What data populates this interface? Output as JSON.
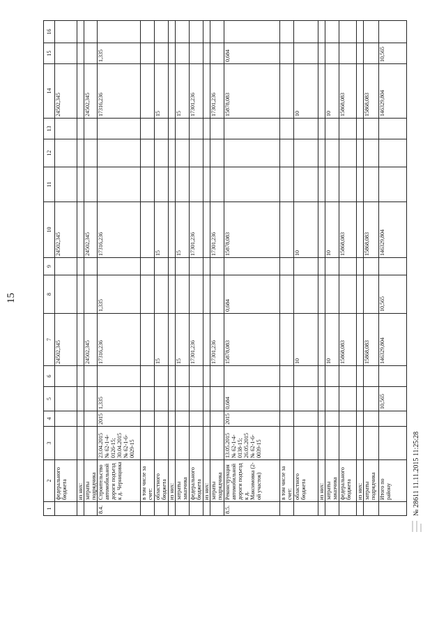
{
  "page_number": "15",
  "table": {
    "header": [
      "1",
      "2",
      "3",
      "4",
      "5",
      "6",
      "7",
      "8",
      "9",
      "10",
      "11",
      "12",
      "13",
      "14",
      "15",
      "16"
    ],
    "rows": [
      [
        null,
        "федерального бюджета",
        null,
        null,
        null,
        null,
        "24502,345",
        null,
        null,
        "24502,345",
        null,
        null,
        null,
        "24502,345",
        null,
        null
      ],
      [
        null,
        "из них:",
        null,
        null,
        null,
        null,
        null,
        null,
        null,
        null,
        null,
        null,
        null,
        null,
        null,
        null
      ],
      [
        null,
        "затраты подрядчика",
        null,
        null,
        null,
        null,
        "24502,345",
        null,
        null,
        "24502,345",
        null,
        null,
        null,
        "24502,345",
        null,
        null
      ],
      [
        "8.4.",
        "Строительство автомобильной дороги подъезд к д. Черницовка",
        "23.04.2015 № 62-1-4-0126-15; 30.04.2015 № 62-1-6-0029-15",
        "2015",
        "1,335",
        null,
        "17316,236",
        "1,335",
        null,
        "17316,236",
        null,
        null,
        null,
        "17316,236",
        "1,335",
        null
      ],
      [
        null,
        "в том числе за счет:",
        null,
        null,
        null,
        null,
        null,
        null,
        null,
        null,
        null,
        null,
        null,
        null,
        null,
        null
      ],
      [
        null,
        "областного бюджета",
        null,
        null,
        null,
        null,
        "15",
        null,
        null,
        "15",
        null,
        null,
        null,
        "15",
        null,
        null
      ],
      [
        null,
        "из них:",
        null,
        null,
        null,
        null,
        null,
        null,
        null,
        null,
        null,
        null,
        null,
        null,
        null,
        null
      ],
      [
        null,
        "затраты заказчика",
        null,
        null,
        null,
        null,
        "15",
        null,
        null,
        "15",
        null,
        null,
        null,
        "15",
        null,
        null
      ],
      [
        null,
        "федерального бюджета",
        null,
        null,
        null,
        null,
        "17301,236",
        null,
        null,
        "17301,236",
        null,
        null,
        null,
        "17301,236",
        null,
        null
      ],
      [
        null,
        "из них:",
        null,
        null,
        null,
        null,
        null,
        null,
        null,
        null,
        null,
        null,
        null,
        null,
        null,
        null
      ],
      [
        null,
        "затраты подрядчика",
        null,
        null,
        null,
        null,
        "17301,236",
        null,
        null,
        "17301,236",
        null,
        null,
        null,
        "17301,236",
        null,
        null
      ],
      [
        "8.5.",
        "Реконструкция автомобильной дороги подъезд к д. Максимовка (2-ой участок)",
        "13.05.2015 № 62-1-4-0138-15; 26.05.2015 № 62-1-6-0039-15",
        "2015",
        "0,684",
        null,
        "15878,083",
        "0,684",
        null,
        "15878,083",
        null,
        null,
        null,
        "15878,083",
        "0,684",
        null
      ],
      [
        null,
        "в том числе за счет:",
        null,
        null,
        null,
        null,
        null,
        null,
        null,
        null,
        null,
        null,
        null,
        null,
        null,
        null
      ],
      [
        null,
        "областного бюджета",
        null,
        null,
        null,
        null,
        "10",
        null,
        null,
        "10",
        null,
        null,
        null,
        "10",
        null,
        null
      ],
      [
        null,
        "из них:",
        null,
        null,
        null,
        null,
        null,
        null,
        null,
        null,
        null,
        null,
        null,
        null,
        null,
        null
      ],
      [
        null,
        "затраты заказчика",
        null,
        null,
        null,
        null,
        "10",
        null,
        null,
        "10",
        null,
        null,
        null,
        "10",
        null,
        null
      ],
      [
        null,
        "федерального бюджета",
        null,
        null,
        null,
        null,
        "15868,083",
        null,
        null,
        "15868,083",
        null,
        null,
        null,
        "15868,083",
        null,
        null
      ],
      [
        null,
        "из них:",
        null,
        null,
        null,
        null,
        null,
        null,
        null,
        null,
        null,
        null,
        null,
        null,
        null,
        null
      ],
      [
        null,
        "затраты подрядчика",
        null,
        null,
        null,
        null,
        "15868,083",
        null,
        null,
        "15868,083",
        null,
        null,
        null,
        "15868,083",
        null,
        null
      ],
      [
        null,
        "Итого по району",
        null,
        null,
        "10,565",
        null,
        "146329,804",
        "10,565",
        null,
        "146329,804",
        null,
        null,
        null,
        "146329,804",
        "10,565",
        null
      ]
    ]
  },
  "footer": "№ 28611 11.11.2015 11:25:28"
}
